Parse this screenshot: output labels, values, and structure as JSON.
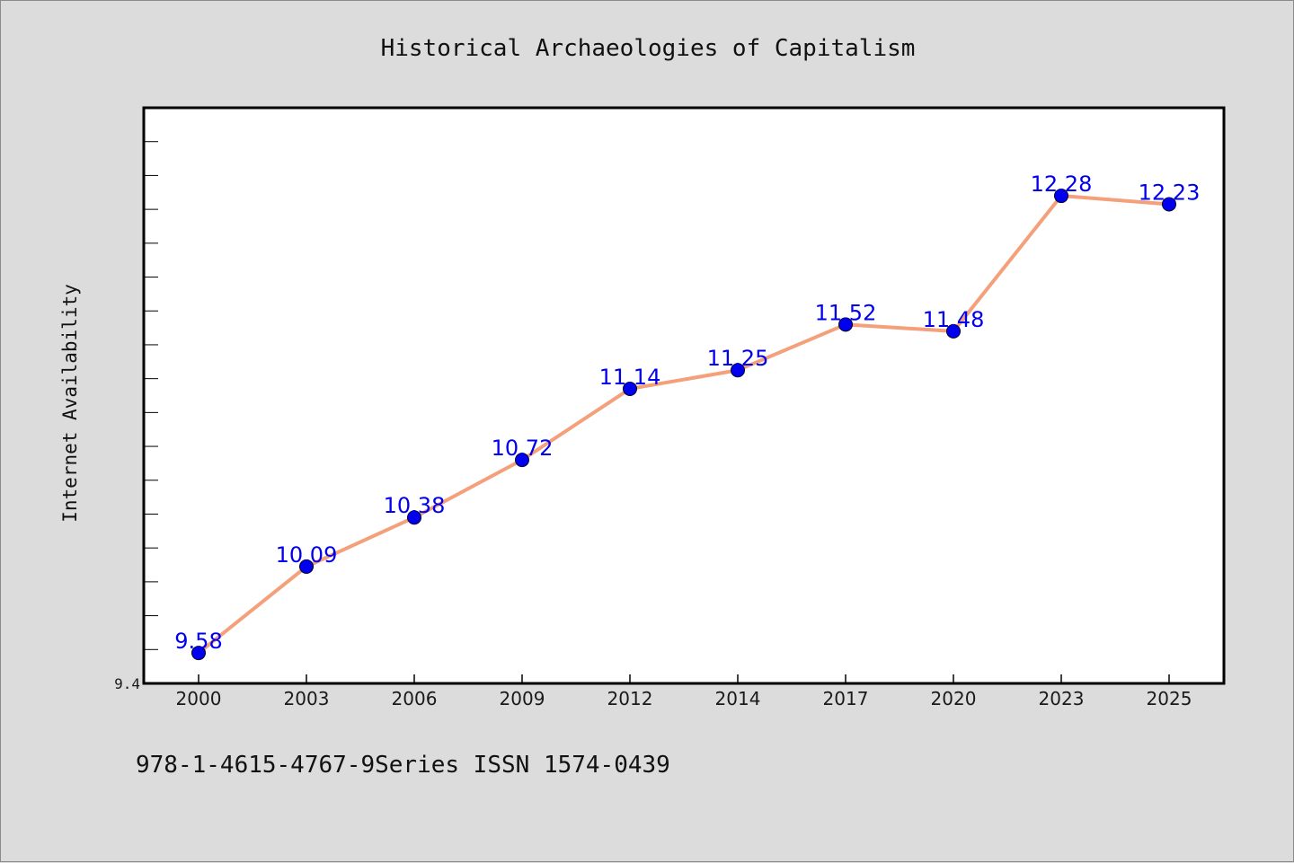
{
  "chart_data": {
    "type": "line",
    "title": "Historical Archaeologies of Capitalism",
    "xlabel": "",
    "ylabel": "Internet Availability",
    "categories": [
      "2000",
      "2003",
      "2006",
      "2009",
      "2012",
      "2014",
      "2017",
      "2020",
      "2023",
      "2025"
    ],
    "series": [
      {
        "values": [
          9.58,
          10.09,
          10.38,
          10.72,
          11.14,
          11.25,
          11.52,
          11.48,
          12.28,
          12.23
        ]
      }
    ],
    "data_labels": [
      "9.58",
      "10.09",
      "10.38",
      "10.72",
      "11.14",
      "11.25",
      "11.52",
      "11.48",
      "12.28",
      "12.23"
    ],
    "y_tick_labels": [
      "9.4"
    ],
    "ylim": [
      9.4,
      12.8
    ],
    "grid": false,
    "colors": {
      "line": "#f4a07a",
      "marker": "#0000ee",
      "label": "#0000ee"
    }
  },
  "footnote": "978-1-4615-4767-9Series ISSN 1574-0439"
}
